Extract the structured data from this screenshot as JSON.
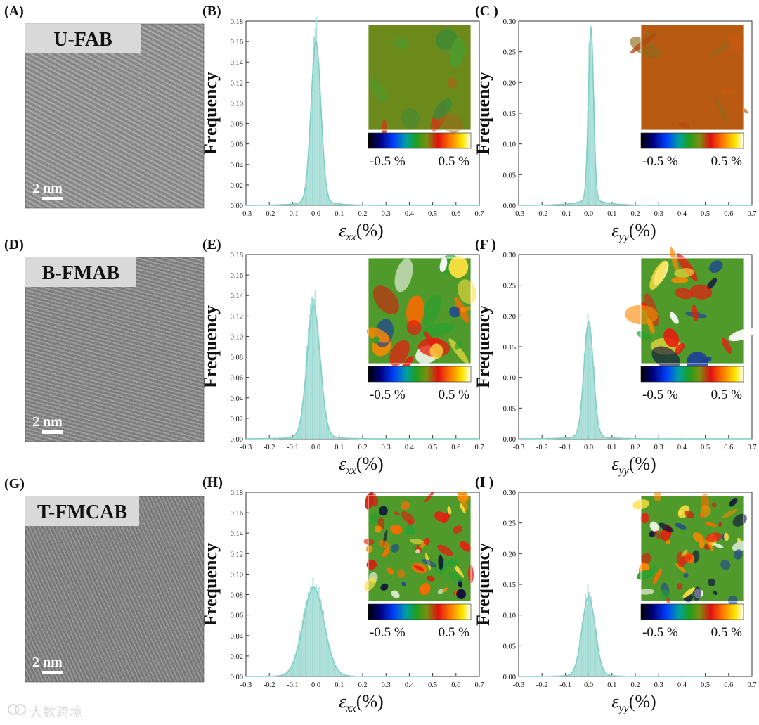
{
  "figure": {
    "rows": [
      {
        "tem": {
          "panel_label": "(A)",
          "sample": "U-FAB",
          "scalebar": "2 nm",
          "tone": 0.55
        },
        "plots": [
          {
            "panel_label": "(B)",
            "axis": "xx",
            "ymax": 0.18,
            "ystep": 0.02,
            "peak": 0.16,
            "sigma": 0.021,
            "mu": 0.0,
            "xmax_tail": 0.7,
            "colorbar": {
              "min": "-0.5 %",
              "max": "0.5 %"
            },
            "map_style": "uniform_green"
          },
          {
            "panel_label": "(C )",
            "axis": "yy",
            "ymax": 0.3,
            "ystep": 0.05,
            "peak": 0.29,
            "sigma": 0.011,
            "mu": 0.01,
            "xmax_tail": 0.7,
            "colorbar": {
              "min": "-0.5 %",
              "max": "0.5 %"
            },
            "map_style": "uniform_red"
          }
        ]
      },
      {
        "tem": {
          "panel_label": "(D)",
          "sample": "B-FMAB",
          "scalebar": "2 nm",
          "tone": 0.42
        },
        "plots": [
          {
            "panel_label": "(E)",
            "axis": "xx",
            "ymax": 0.18,
            "ystep": 0.02,
            "peak": 0.13,
            "sigma": 0.028,
            "mu": -0.01,
            "xmax_tail": 0.7,
            "colorbar": {
              "min": "-0.5 %",
              "max": "0.5 %"
            },
            "map_style": "mixed"
          },
          {
            "panel_label": "(F )",
            "axis": "yy",
            "ymax": 0.3,
            "ystep": 0.05,
            "peak": 0.19,
            "sigma": 0.02,
            "mu": 0.0,
            "xmax_tail": 0.7,
            "colorbar": {
              "min": "-0.5 %",
              "max": "0.5 %"
            },
            "map_style": "mixed2"
          }
        ]
      },
      {
        "tem": {
          "panel_label": "(G)",
          "sample": "T-FMCAB",
          "scalebar": "2 nm",
          "tone": 0.36
        },
        "plots": [
          {
            "panel_label": "(H)",
            "axis": "xx",
            "ymax": 0.18,
            "ystep": 0.02,
            "peak": 0.087,
            "sigma": 0.045,
            "mu": -0.01,
            "xmax_tail": 0.5,
            "colorbar": {
              "min": "-0.5 %",
              "max": "0.5 %"
            },
            "map_style": "busy"
          },
          {
            "panel_label": "(I )",
            "axis": "yy",
            "ymax": 0.3,
            "ystep": 0.05,
            "peak": 0.13,
            "sigma": 0.028,
            "mu": 0.0,
            "xmax_tail": 0.5,
            "colorbar": {
              "min": "-0.5 %",
              "max": "0.5 %"
            },
            "map_style": "busy2"
          }
        ]
      }
    ],
    "ylabel": "Frequency",
    "xlabel_prefix": "ε",
    "xlabel_suffix": "(%)",
    "xlim": [
      -0.3,
      0.7
    ],
    "xticks": [
      "-0.3",
      "-0.2",
      "-0.1",
      "0.0",
      "0.1",
      "0.2",
      "0.3",
      "0.4",
      "0.5",
      "0.6",
      "0.7"
    ],
    "curve_color": "#7fcfc6",
    "bar_color": "#b9e4df"
  },
  "chart_data": [
    {
      "type": "bar",
      "title": "(B)",
      "xlabel": "εxx(%)",
      "ylabel": "Frequency",
      "xlim": [
        -0.3,
        0.7
      ],
      "ylim": [
        0,
        0.18
      ],
      "peak_x": 0.0,
      "peak_y": 0.16
    },
    {
      "type": "bar",
      "title": "(C )",
      "xlabel": "εyy(%)",
      "ylabel": "Frequency",
      "xlim": [
        -0.3,
        0.7
      ],
      "ylim": [
        0,
        0.3
      ],
      "peak_x": 0.01,
      "peak_y": 0.29
    },
    {
      "type": "bar",
      "title": "(E)",
      "xlabel": "εxx(%)",
      "ylabel": "Frequency",
      "xlim": [
        -0.3,
        0.7
      ],
      "ylim": [
        0,
        0.18
      ],
      "peak_x": -0.01,
      "peak_y": 0.13
    },
    {
      "type": "bar",
      "title": "(F )",
      "xlabel": "εyy(%)",
      "ylabel": "Frequency",
      "xlim": [
        -0.3,
        0.7
      ],
      "ylim": [
        0,
        0.3
      ],
      "peak_x": 0.0,
      "peak_y": 0.19
    },
    {
      "type": "bar",
      "title": "(H)",
      "xlabel": "εxx(%)",
      "ylabel": "Frequency",
      "xlim": [
        -0.3,
        0.7
      ],
      "ylim": [
        0,
        0.18
      ],
      "peak_x": -0.01,
      "peak_y": 0.087
    },
    {
      "type": "bar",
      "title": "(I )",
      "xlabel": "εyy(%)",
      "ylabel": "Frequency",
      "xlim": [
        -0.3,
        0.7
      ],
      "ylim": [
        0,
        0.3
      ],
      "peak_x": 0.0,
      "peak_y": 0.13
    }
  ],
  "watermark": {
    "text": "大数跨境",
    "icon": "watermark-logo-icon"
  }
}
